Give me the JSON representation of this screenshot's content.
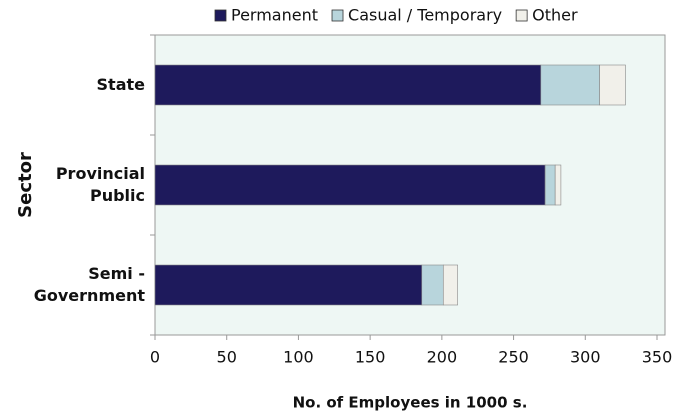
{
  "chart_data": {
    "type": "stacked-bar-horizontal",
    "x_label": "No. of Employees in 1000 s.",
    "y_label": "Sector",
    "categories": [
      [
        "State"
      ],
      [
        "Provincial",
        "Public"
      ],
      [
        "Semi -",
        "Government"
      ]
    ],
    "series": [
      {
        "name": "Permanent",
        "color": "#1e1a5c",
        "values": [
          269,
          272,
          186
        ]
      },
      {
        "name": "Casual / Temporary",
        "color": "#b8d5dc",
        "values": [
          41,
          7,
          15
        ]
      },
      {
        "name": "Other",
        "color": "#f1f0ea",
        "values": [
          18,
          4,
          10
        ]
      }
    ],
    "xlim": [
      0,
      350
    ],
    "xticks": [
      0,
      50,
      100,
      150,
      200,
      250,
      300,
      350
    ],
    "grid": false,
    "legend": "top"
  }
}
